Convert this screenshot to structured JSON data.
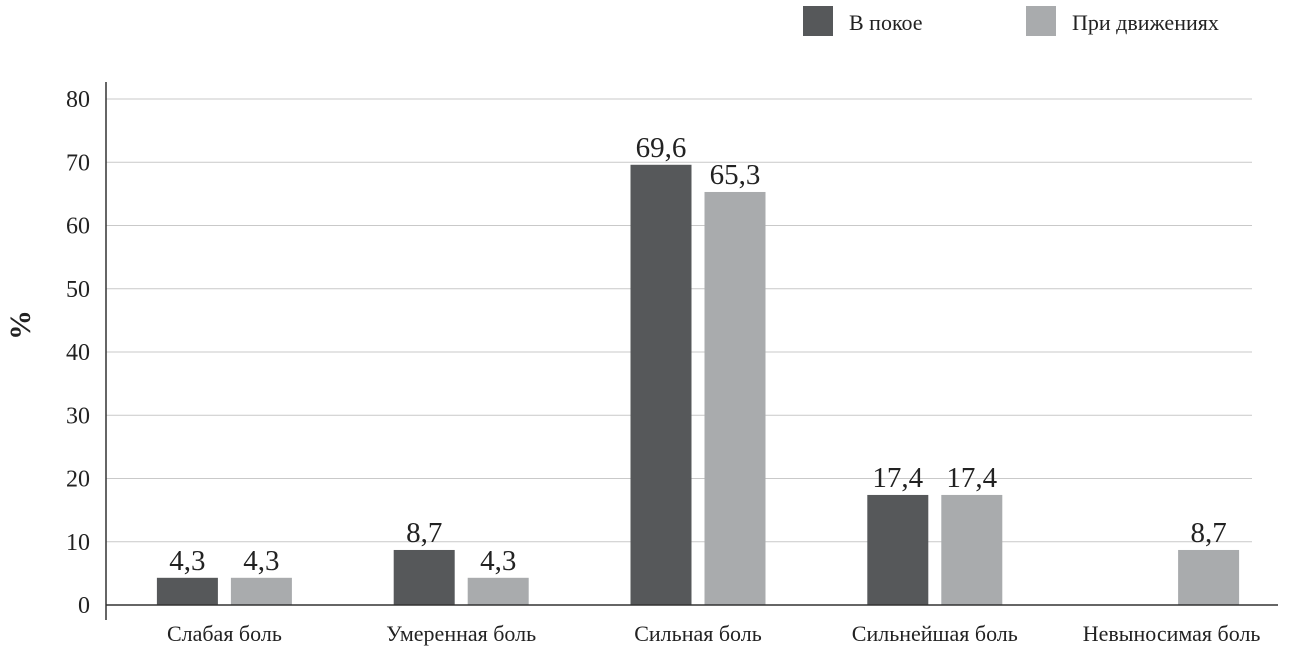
{
  "chart_data": {
    "type": "bar",
    "ylabel": "%",
    "ylim": [
      0,
      80
    ],
    "yticks": [
      0,
      10,
      20,
      30,
      40,
      50,
      60,
      70,
      80
    ],
    "grid": true,
    "legend_position": "top-right",
    "categories": [
      "Слабая боль",
      "Умеренная боль",
      "Сильная боль",
      "Сильнейшая боль",
      "Невыносимая боль"
    ],
    "series": [
      {
        "name": "В покое",
        "color": "#56585a",
        "values": [
          4.3,
          8.7,
          69.6,
          17.4,
          null
        ],
        "labels": [
          "4,3",
          "8,7",
          "69,6",
          "17,4",
          ""
        ]
      },
      {
        "name": "При движениях",
        "color": "#a9abad",
        "values": [
          4.3,
          4.3,
          65.3,
          17.4,
          8.7
        ],
        "labels": [
          "4,3",
          "4,3",
          "65,3",
          "17,4",
          "8,7"
        ]
      }
    ]
  }
}
